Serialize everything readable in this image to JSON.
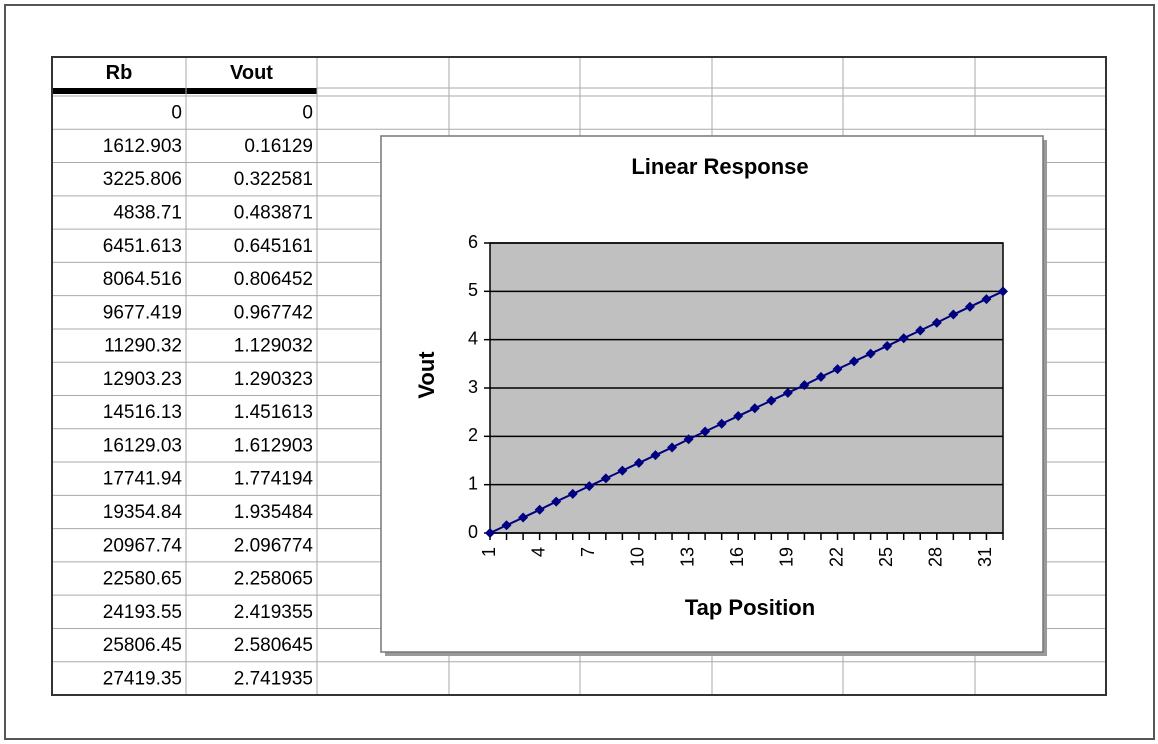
{
  "table": {
    "columns": [
      "Rb",
      "Vout"
    ],
    "rows": [
      [
        "0",
        "0"
      ],
      [
        "1612.903",
        "0.16129"
      ],
      [
        "3225.806",
        "0.322581"
      ],
      [
        "4838.71",
        "0.483871"
      ],
      [
        "6451.613",
        "0.645161"
      ],
      [
        "8064.516",
        "0.806452"
      ],
      [
        "9677.419",
        "0.967742"
      ],
      [
        "11290.32",
        "1.129032"
      ],
      [
        "12903.23",
        "1.290323"
      ],
      [
        "14516.13",
        "1.451613"
      ],
      [
        "16129.03",
        "1.612903"
      ],
      [
        "17741.94",
        "1.774194"
      ],
      [
        "19354.84",
        "1.935484"
      ],
      [
        "20967.74",
        "2.096774"
      ],
      [
        "22580.65",
        "2.258065"
      ],
      [
        "24193.55",
        "2.419355"
      ],
      [
        "25806.45",
        "2.580645"
      ],
      [
        "27419.35",
        "2.741935"
      ]
    ]
  },
  "chart_data": {
    "type": "line",
    "title": "Linear Response",
    "x_label": "Tap Position",
    "y_label": "Vout",
    "categories": [
      "1",
      null,
      null,
      "4",
      null,
      null,
      "7",
      null,
      null,
      "10",
      null,
      null,
      "13",
      null,
      null,
      "16",
      null,
      null,
      "19",
      null,
      null,
      "22",
      null,
      null,
      "25",
      null,
      null,
      "28",
      null,
      null,
      "31",
      null
    ],
    "series": [
      {
        "name": "Vout",
        "color": "#000080",
        "values": [
          0,
          0.16,
          0.32,
          0.48,
          0.65,
          0.81,
          0.97,
          1.13,
          1.29,
          1.45,
          1.61,
          1.77,
          1.94,
          2.1,
          2.26,
          2.42,
          2.58,
          2.74,
          2.9,
          3.06,
          3.23,
          3.39,
          3.55,
          3.71,
          3.87,
          4.03,
          4.19,
          4.35,
          4.52,
          4.68,
          4.84,
          5.0
        ]
      }
    ],
    "ylim": [
      0,
      6
    ],
    "yticks": [
      0,
      1,
      2,
      3,
      4,
      5,
      6
    ],
    "grid": true,
    "plot_color": "#c0c0c0"
  }
}
